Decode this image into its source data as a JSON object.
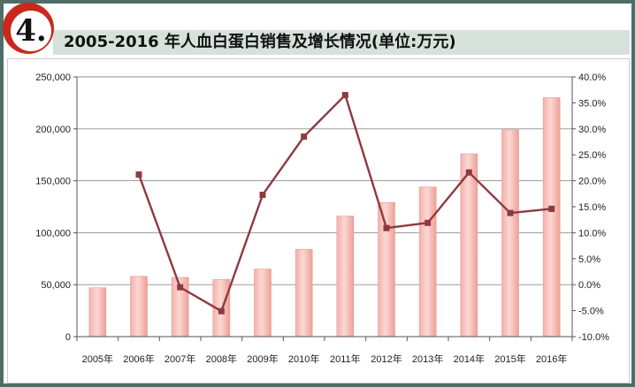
{
  "header": {
    "number": "4.",
    "title": "2005-2016 年人血白蛋白销售及增长情况(单位:万元)"
  },
  "colors": {
    "bar_fill": "#f3b1aa",
    "bar_highlight": "#fbd8d3",
    "line": "#8e3940",
    "badge_ring": "#c8291c",
    "title_bar": "#d6e1dc",
    "background": "#4f6e66"
  },
  "chart_data": {
    "type": "bar",
    "categories": [
      "2005年",
      "2006年",
      "2007年",
      "2008年",
      "2009年",
      "2010年",
      "2011年",
      "2012年",
      "2013年",
      "2014年",
      "2015年",
      "2016年"
    ],
    "series": [
      {
        "type": "bar",
        "axis": "left",
        "values": [
          47000,
          58000,
          57000,
          55000,
          65000,
          84000,
          116000,
          129000,
          144000,
          176000,
          199000,
          230000
        ]
      },
      {
        "type": "line",
        "axis": "right",
        "values": [
          null,
          21.2,
          -0.5,
          -5.1,
          17.3,
          28.5,
          36.5,
          10.9,
          11.9,
          21.6,
          13.8,
          14.6
        ]
      }
    ],
    "y_left": {
      "min": 0,
      "max": 250000,
      "ticks": [
        "0",
        "50,000",
        "100,000",
        "150,000",
        "200,000",
        "250,000"
      ]
    },
    "y_right": {
      "min": -10,
      "max": 40,
      "ticks": [
        "-10.0%",
        "-5.0%",
        "0.0%",
        "5.0%",
        "10.0%",
        "15.0%",
        "20.0%",
        "25.0%",
        "30.0%",
        "35.0%",
        "40.0%"
      ]
    },
    "grid": true,
    "legend": "none"
  }
}
